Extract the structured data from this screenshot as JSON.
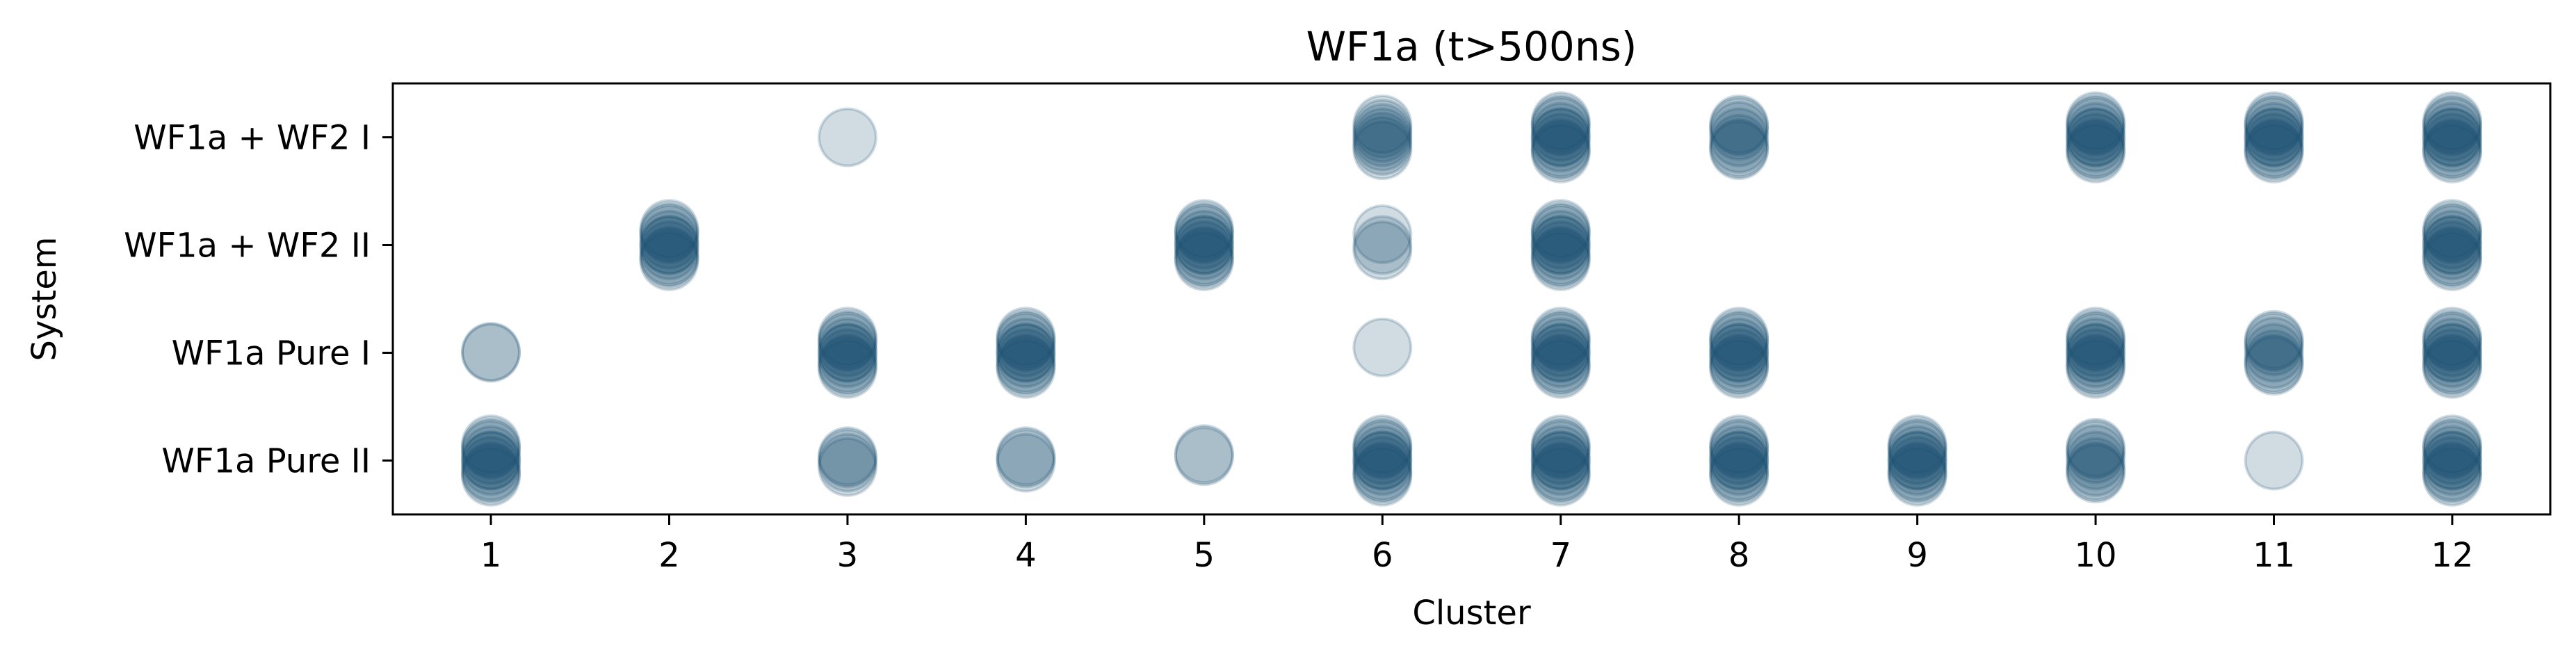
{
  "chart_data": {
    "type": "scatter",
    "title": "WF1a (t>500ns)",
    "xlabel": "Cluster",
    "ylabel": "System",
    "x_ticks": [
      1,
      2,
      3,
      4,
      5,
      6,
      7,
      8,
      9,
      10,
      11,
      12
    ],
    "x_tick_labels": [
      "1",
      "2",
      "3",
      "4",
      "5",
      "6",
      "7",
      "8",
      "9",
      "10",
      "11",
      "12"
    ],
    "xlim": [
      0.45,
      12.55
    ],
    "categories": [
      "WF1a Pure II",
      "WF1a Pure I",
      "WF1a + WF2 II",
      "WF1a + WF2 I"
    ],
    "ylim": [
      -0.5,
      3.5
    ],
    "grid": false,
    "marker_color": "#134a6e",
    "points": [
      {
        "cluster": 3,
        "system": "WF1a + WF2 I",
        "offsets": [
          0
        ]
      },
      {
        "cluster": 6,
        "system": "WF1a + WF2 I",
        "offsets": [
          -0.12,
          -0.08,
          -0.04,
          0,
          0.04,
          0.08,
          0.12
        ]
      },
      {
        "cluster": 7,
        "system": "WF1a + WF2 I",
        "offsets": [
          -0.15,
          -0.1,
          -0.05,
          0,
          0.05,
          0.1,
          0.15,
          -0.12,
          0.12,
          0
        ]
      },
      {
        "cluster": 8,
        "system": "WF1a + WF2 I",
        "offsets": [
          -0.12,
          -0.06,
          0,
          0.06,
          0.12,
          -0.1,
          0.1
        ]
      },
      {
        "cluster": 10,
        "system": "WF1a + WF2 I",
        "offsets": [
          -0.15,
          -0.1,
          -0.05,
          0,
          0.05,
          0.1,
          0.15,
          -0.12,
          0.12,
          0
        ]
      },
      {
        "cluster": 11,
        "system": "WF1a + WF2 I",
        "offsets": [
          -0.15,
          -0.1,
          -0.05,
          0,
          0.05,
          0.1,
          0.15,
          -0.12,
          0.12,
          0
        ]
      },
      {
        "cluster": 12,
        "system": "WF1a + WF2 I",
        "offsets": [
          -0.15,
          -0.1,
          -0.05,
          0,
          0.05,
          0.1,
          0.15,
          -0.12,
          0.12,
          0
        ]
      },
      {
        "cluster": 2,
        "system": "WF1a + WF2 II",
        "offsets": [
          -0.15,
          -0.1,
          -0.05,
          0,
          0.05,
          0.1,
          0.15,
          -0.12,
          0.12,
          0
        ]
      },
      {
        "cluster": 5,
        "system": "WF1a + WF2 II",
        "offsets": [
          -0.15,
          -0.1,
          -0.05,
          0,
          0.05,
          0.1,
          0.15,
          -0.12,
          0.12,
          0
        ]
      },
      {
        "cluster": 6,
        "system": "WF1a + WF2 II",
        "offsets": [
          0.1,
          0,
          -0.05
        ]
      },
      {
        "cluster": 7,
        "system": "WF1a + WF2 II",
        "offsets": [
          -0.15,
          -0.1,
          -0.05,
          0,
          0.05,
          0.1,
          0.15,
          -0.12,
          0.12,
          0
        ]
      },
      {
        "cluster": 12,
        "system": "WF1a + WF2 II",
        "offsets": [
          -0.15,
          -0.1,
          -0.05,
          0,
          0.05,
          0.1,
          0.15,
          -0.12,
          0.12,
          0
        ]
      },
      {
        "cluster": 1,
        "system": "WF1a Pure I",
        "offsets": [
          0,
          0.01
        ]
      },
      {
        "cluster": 3,
        "system": "WF1a Pure I",
        "offsets": [
          -0.15,
          -0.1,
          -0.05,
          0,
          0.05,
          0.1,
          0.15,
          -0.12,
          0.12,
          0
        ]
      },
      {
        "cluster": 4,
        "system": "WF1a Pure I",
        "offsets": [
          -0.15,
          -0.1,
          -0.05,
          0,
          0.05,
          0.1,
          0.15,
          -0.12,
          0.12,
          0
        ]
      },
      {
        "cluster": 6,
        "system": "WF1a Pure I",
        "offsets": [
          0.05
        ]
      },
      {
        "cluster": 7,
        "system": "WF1a Pure I",
        "offsets": [
          -0.15,
          -0.1,
          -0.05,
          0,
          0.05,
          0.1,
          0.15,
          -0.12,
          0.12,
          0
        ]
      },
      {
        "cluster": 8,
        "system": "WF1a Pure I",
        "offsets": [
          -0.15,
          -0.1,
          -0.05,
          0,
          0.05,
          0.1,
          0.15,
          -0.12,
          0.12,
          0
        ]
      },
      {
        "cluster": 10,
        "system": "WF1a Pure I",
        "offsets": [
          -0.15,
          -0.1,
          -0.05,
          0,
          0.05,
          0.1,
          0.15,
          -0.12,
          0.12,
          0
        ]
      },
      {
        "cluster": 11,
        "system": "WF1a Pure I",
        "offsets": [
          -0.12,
          -0.06,
          0,
          0.06,
          0.12,
          -0.1,
          0.1
        ]
      },
      {
        "cluster": 12,
        "system": "WF1a Pure I",
        "offsets": [
          -0.15,
          -0.1,
          -0.05,
          0,
          0.05,
          0.1,
          0.15,
          -0.12,
          0.12,
          0
        ]
      },
      {
        "cluster": 1,
        "system": "WF1a Pure II",
        "offsets": [
          -0.15,
          -0.1,
          -0.05,
          0,
          0.05,
          0.1,
          0.15,
          -0.12,
          0.12,
          0
        ]
      },
      {
        "cluster": 3,
        "system": "WF1a Pure II",
        "offsets": [
          -0.06,
          -0.02,
          0.02,
          0.04
        ]
      },
      {
        "cluster": 4,
        "system": "WF1a Pure II",
        "offsets": [
          -0.02,
          0.02,
          0.04
        ]
      },
      {
        "cluster": 5,
        "system": "WF1a Pure II",
        "offsets": [
          0.04,
          0.06
        ]
      },
      {
        "cluster": 6,
        "system": "WF1a Pure II",
        "offsets": [
          -0.15,
          -0.1,
          -0.05,
          0,
          0.05,
          0.1,
          0.15,
          -0.12,
          0.12,
          0
        ]
      },
      {
        "cluster": 7,
        "system": "WF1a Pure II",
        "offsets": [
          -0.15,
          -0.1,
          -0.05,
          0,
          0.05,
          0.1,
          0.15,
          -0.12,
          0.12,
          0
        ]
      },
      {
        "cluster": 8,
        "system": "WF1a Pure II",
        "offsets": [
          -0.15,
          -0.1,
          -0.05,
          0,
          0.05,
          0.1,
          0.15,
          -0.12,
          0.12,
          0
        ]
      },
      {
        "cluster": 9,
        "system": "WF1a Pure II",
        "offsets": [
          -0.15,
          -0.1,
          -0.05,
          0,
          0.05,
          0.1,
          0.15,
          -0.12,
          0.12,
          0
        ]
      },
      {
        "cluster": 10,
        "system": "WF1a Pure II",
        "offsets": [
          -0.12,
          -0.06,
          0,
          0.06,
          0.12,
          -0.1,
          0.1
        ]
      },
      {
        "cluster": 11,
        "system": "WF1a Pure II",
        "offsets": [
          0
        ]
      },
      {
        "cluster": 12,
        "system": "WF1a Pure II",
        "offsets": [
          -0.15,
          -0.1,
          -0.05,
          0,
          0.05,
          0.1,
          0.15,
          -0.12,
          0.12,
          0
        ]
      }
    ]
  }
}
